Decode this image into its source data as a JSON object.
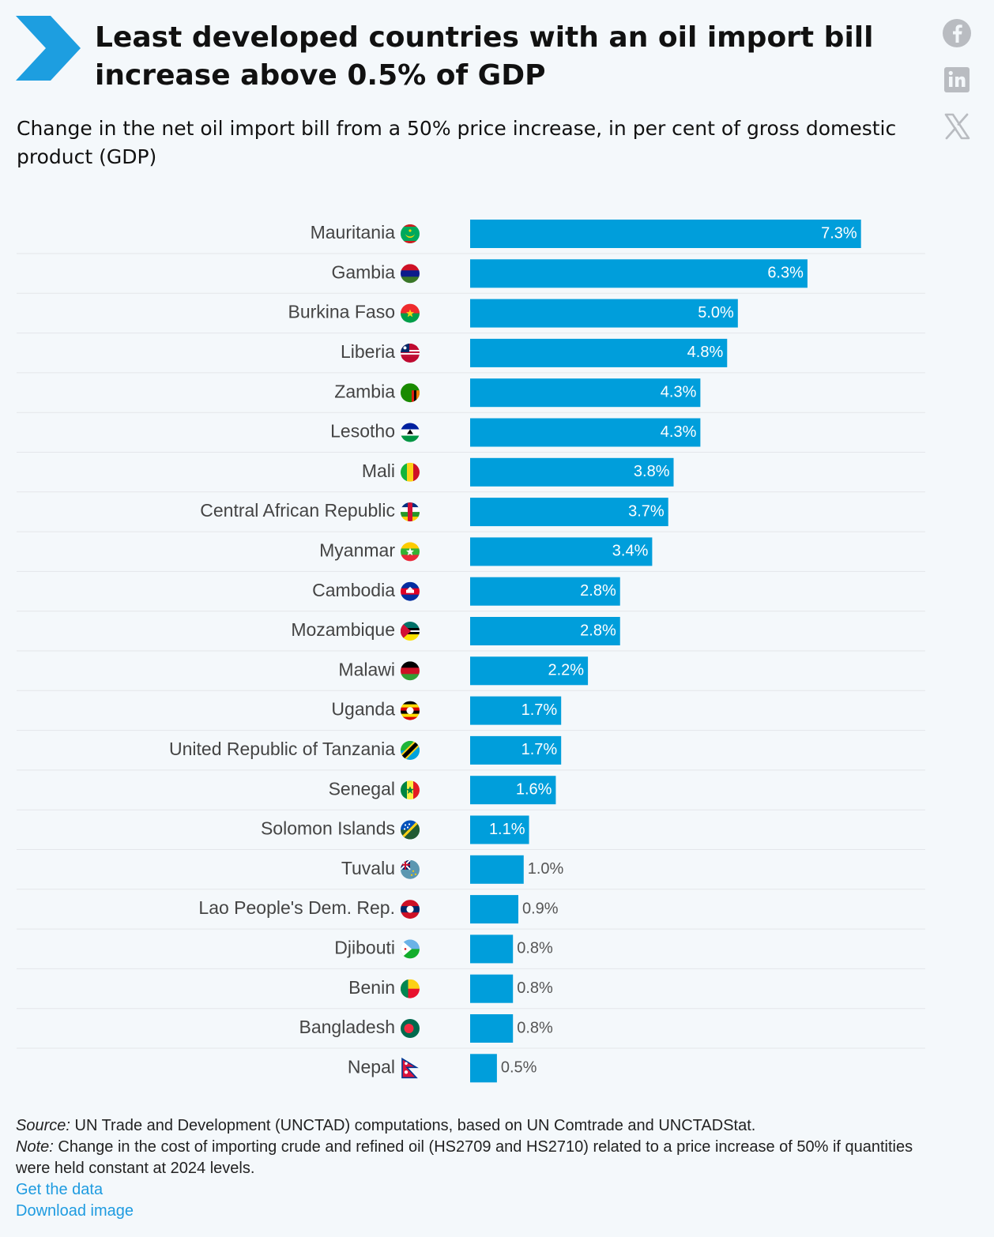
{
  "header": {
    "title": "Least developed countries with an oil import bill increase above 0.5% of GDP",
    "subtitle": "Change in the net oil import bill from a 50% price increase, in per cent of gross domestic product (GDP)"
  },
  "share": {
    "icons": [
      "facebook-icon",
      "linkedin-icon",
      "x-icon"
    ]
  },
  "colors": {
    "bar": "#009edb",
    "chevron": "#1d9ee0",
    "gridline": "#e3e6ea",
    "label_inside": "#ffffff",
    "label_outside": "#555555"
  },
  "chart_data": {
    "type": "bar",
    "orientation": "horizontal",
    "title": "Least developed countries with an oil import bill increase above 0.5% of GDP",
    "subtitle": "Change in the net oil import bill from a 50% price increase, in per cent of gross domestic product (GDP)",
    "xlim": [
      0,
      8.5
    ],
    "grid": true,
    "categories": [
      "Mauritania",
      "Gambia",
      "Burkina Faso",
      "Liberia",
      "Zambia",
      "Lesotho",
      "Mali",
      "Central African Republic",
      "Myanmar",
      "Cambodia",
      "Mozambique",
      "Malawi",
      "Uganda",
      "United Republic of Tanzania",
      "Senegal",
      "Solomon Islands",
      "Tuvalu",
      "Lao People's Dem. Rep.",
      "Djibouti",
      "Benin",
      "Bangladesh",
      "Nepal"
    ],
    "values": [
      7.3,
      6.3,
      5.0,
      4.8,
      4.3,
      4.3,
      3.8,
      3.7,
      3.4,
      2.8,
      2.8,
      2.2,
      1.7,
      1.7,
      1.6,
      1.1,
      1.0,
      0.9,
      0.8,
      0.8,
      0.8,
      0.5
    ],
    "labels": [
      "7.3%",
      "6.3%",
      "5.0%",
      "4.8%",
      "4.3%",
      "4.3%",
      "3.8%",
      "3.7%",
      "3.4%",
      "2.8%",
      "2.8%",
      "2.2%",
      "1.7%",
      "1.7%",
      "1.6%",
      "1.1%",
      "1.0%",
      "0.9%",
      "0.8%",
      "0.8%",
      "0.8%",
      "0.5%"
    ]
  },
  "flags": [
    {
      "country": "Mauritania",
      "icon": "mauritania-flag-icon",
      "colors": [
        "#00a95c",
        "#00a95c",
        "#00a95c"
      ],
      "emblem": "crescent"
    },
    {
      "country": "Gambia",
      "icon": "gambia-flag-icon",
      "colors": [
        "#ce1126",
        "#0c1c8c",
        "#3a7728"
      ]
    },
    {
      "country": "Burkina Faso",
      "icon": "burkina-faso-flag-icon",
      "colors": [
        "#ef2b2d",
        "#009e49"
      ],
      "emblem": "star"
    },
    {
      "country": "Liberia",
      "icon": "liberia-flag-icon",
      "colors": [
        "#bf0a30",
        "#ffffff",
        "#bf0a30"
      ],
      "emblem": "canton"
    },
    {
      "country": "Zambia",
      "icon": "zambia-flag-icon",
      "colors": [
        "#198a00",
        "#198a00",
        "#198a00"
      ],
      "emblem": "stripes"
    },
    {
      "country": "Lesotho",
      "icon": "lesotho-flag-icon",
      "colors": [
        "#00209f",
        "#ffffff",
        "#009543"
      ],
      "emblem": "hat"
    },
    {
      "country": "Mali",
      "icon": "mali-flag-icon",
      "colors": [
        "#14b53a",
        "#fcd116",
        "#ce1126"
      ],
      "vertical": true
    },
    {
      "country": "Central African Republic",
      "icon": "car-flag-icon",
      "colors": [
        "#003082",
        "#ffffff",
        "#289728",
        "#ffce00"
      ],
      "emblem": "redbar"
    },
    {
      "country": "Myanmar",
      "icon": "myanmar-flag-icon",
      "colors": [
        "#fecb00",
        "#34b233",
        "#ea2839"
      ],
      "emblem": "star"
    },
    {
      "country": "Cambodia",
      "icon": "cambodia-flag-icon",
      "colors": [
        "#032ea1",
        "#e00025",
        "#032ea1"
      ],
      "emblem": "temple"
    },
    {
      "country": "Mozambique",
      "icon": "mozambique-flag-icon",
      "colors": [
        "#007168",
        "#000000",
        "#fce100"
      ],
      "emblem": "triangle"
    },
    {
      "country": "Malawi",
      "icon": "malawi-flag-icon",
      "colors": [
        "#000000",
        "#ce1126",
        "#339e35"
      ]
    },
    {
      "country": "Uganda",
      "icon": "uganda-flag-icon",
      "colors": [
        "#000000",
        "#fcdc04",
        "#d90000",
        "#000000",
        "#fcdc04",
        "#d90000"
      ],
      "emblem": "circle"
    },
    {
      "country": "United Republic of Tanzania",
      "icon": "tanzania-flag-icon",
      "colors": [
        "#1eb53a",
        "#00a3dd"
      ],
      "emblem": "diagonal"
    },
    {
      "country": "Senegal",
      "icon": "senegal-flag-icon",
      "colors": [
        "#00853f",
        "#fdef42",
        "#e31b23"
      ],
      "vertical": true,
      "emblem": "star"
    },
    {
      "country": "Solomon Islands",
      "icon": "solomon-islands-flag-icon",
      "colors": [
        "#0051ba",
        "#215b33"
      ],
      "emblem": "diagonal-stars"
    },
    {
      "country": "Tuvalu",
      "icon": "tuvalu-flag-icon",
      "colors": [
        "#5b97b1",
        "#5b97b1",
        "#5b97b1"
      ],
      "emblem": "union"
    },
    {
      "country": "Lao People's Dem. Rep.",
      "icon": "laos-flag-icon",
      "colors": [
        "#ce1126",
        "#002868",
        "#ce1126"
      ],
      "emblem": "disc"
    },
    {
      "country": "Djibouti",
      "icon": "djibouti-flag-icon",
      "colors": [
        "#6ab2e7",
        "#12ad2b"
      ],
      "emblem": "triangle-white"
    },
    {
      "country": "Benin",
      "icon": "benin-flag-icon",
      "colors": [
        "#fcd116",
        "#e8112d"
      ],
      "emblem": "green-left"
    },
    {
      "country": "Bangladesh",
      "icon": "bangladesh-flag-icon",
      "colors": [
        "#006a4e",
        "#006a4e",
        "#006a4e"
      ],
      "emblem": "red-disc"
    },
    {
      "country": "Nepal",
      "icon": "nepal-flag-icon",
      "colors": [
        "#dc143c",
        "#dc143c",
        "#dc143c"
      ],
      "emblem": "pennant"
    }
  ],
  "footer": {
    "source_label": "Source:",
    "source_text": " UN Trade and Development (UNCTAD) computations, based on UN Comtrade and UNCTADStat.",
    "note_label": "Note:",
    "note_text": " Change in the cost of importing crude and refined oil (HS2709 and HS2710) related to a price increase of 50% if quantities were held constant at 2024 levels.",
    "links": [
      "Get the data",
      "Download image"
    ]
  }
}
